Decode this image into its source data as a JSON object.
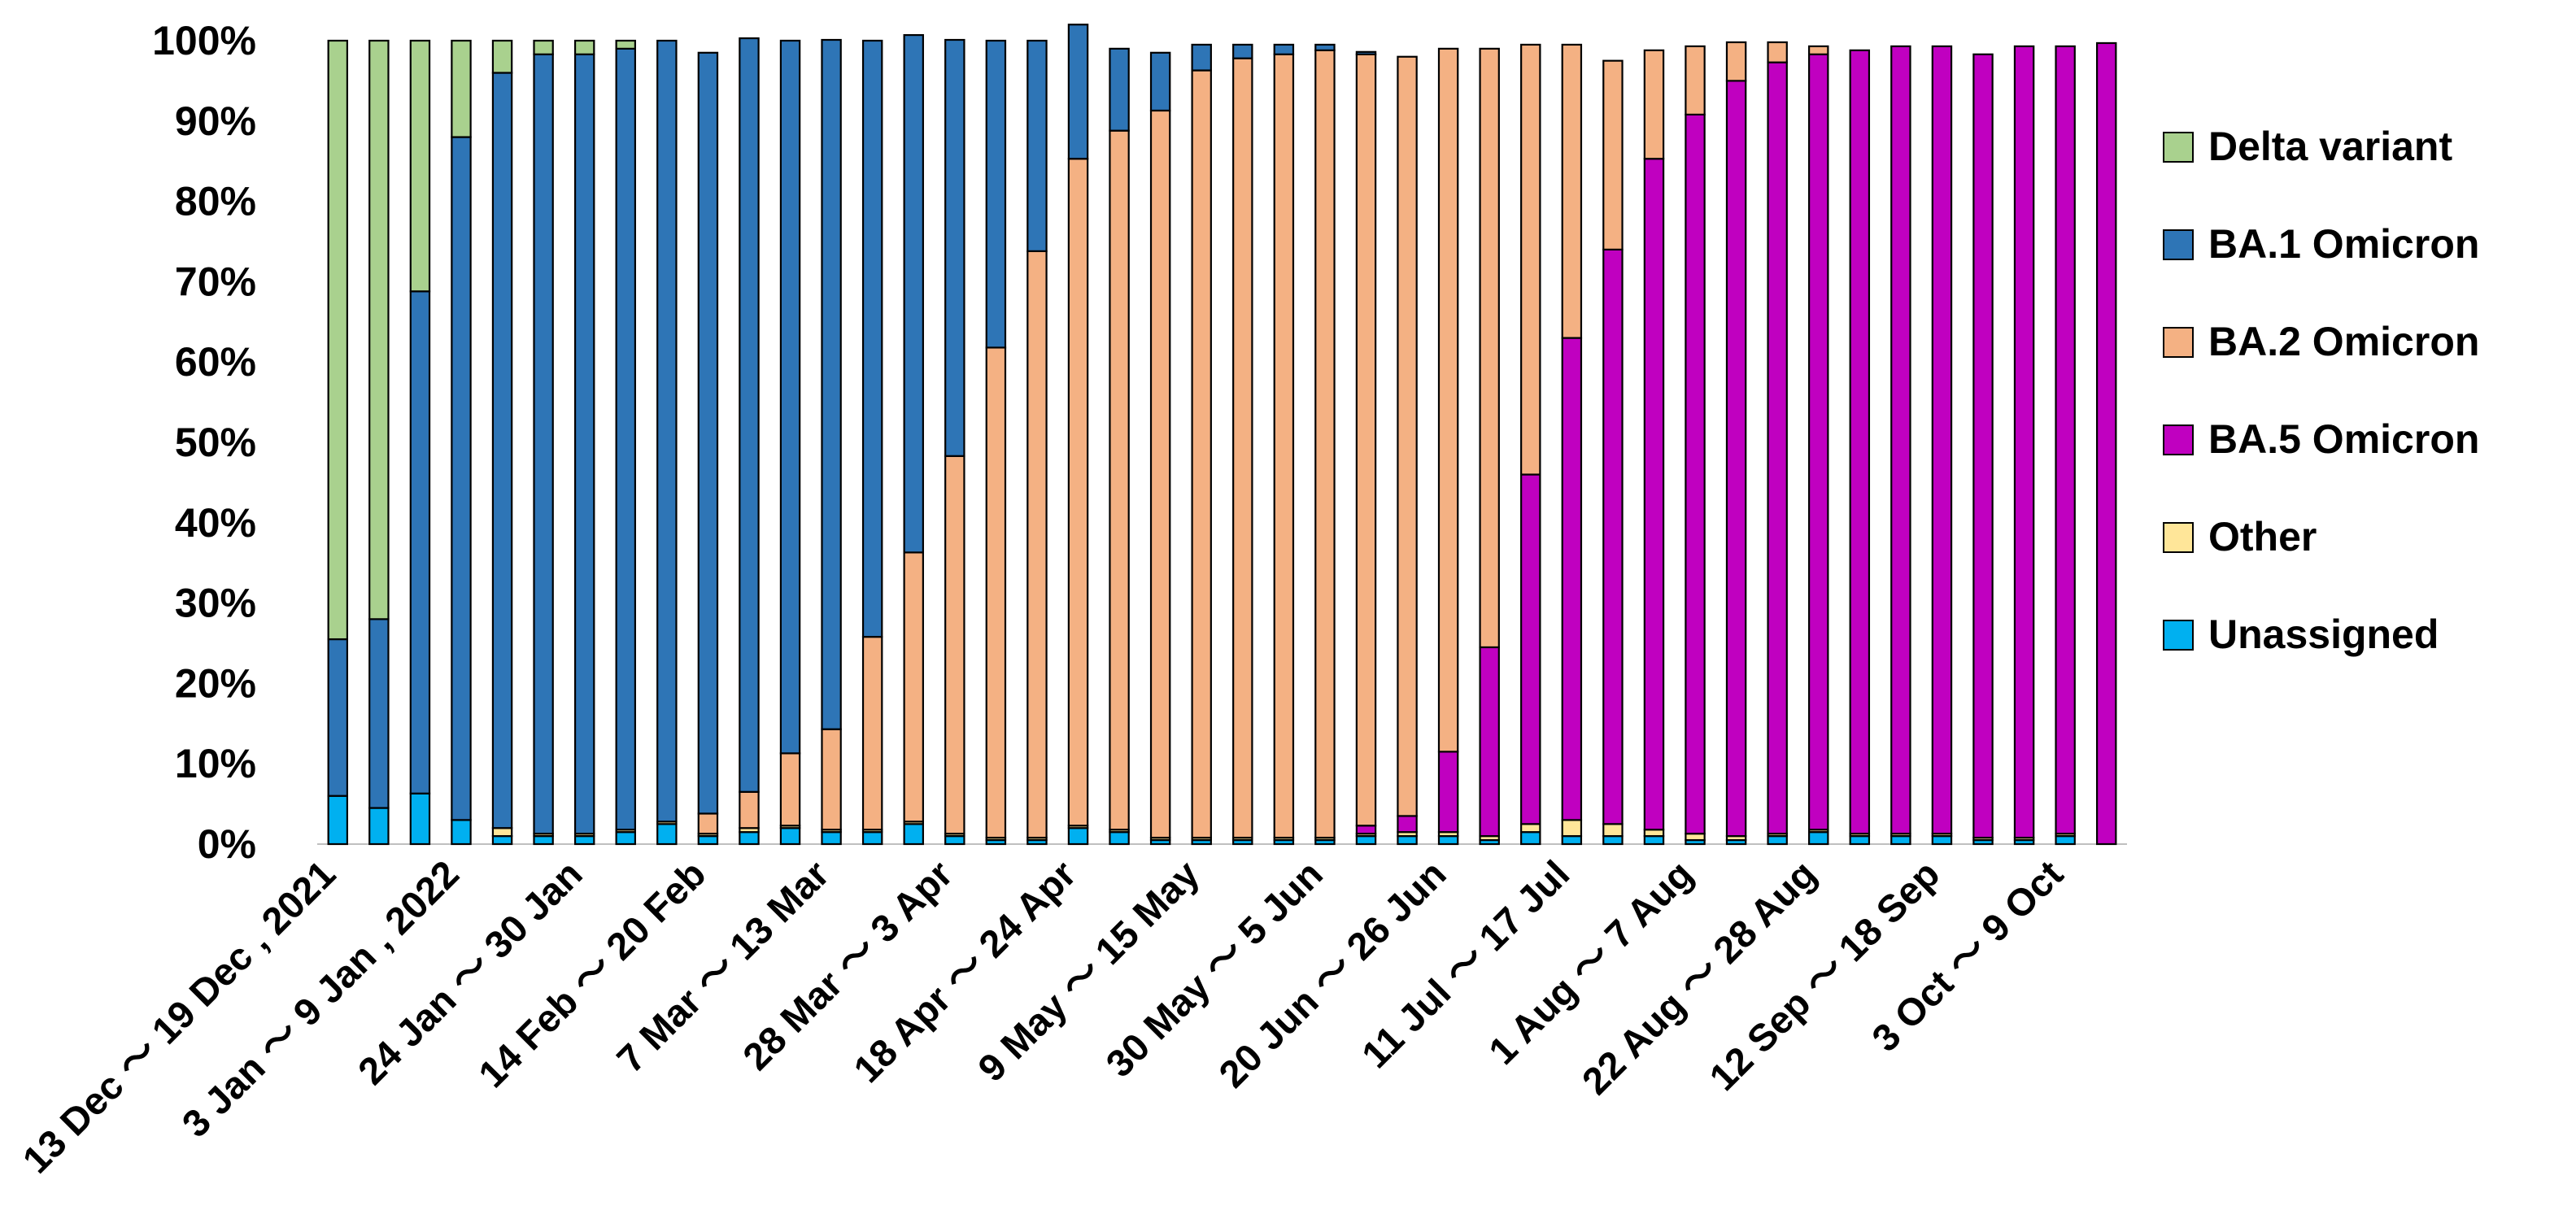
{
  "chart_data": {
    "type": "bar",
    "stacked": true,
    "percent": true,
    "title": "",
    "xlabel": "",
    "ylabel": "",
    "ylim": [
      0,
      100
    ],
    "yticks": [
      "0%",
      "10%",
      "20%",
      "30%",
      "40%",
      "50%",
      "60%",
      "70%",
      "80%",
      "90%",
      "100%"
    ],
    "x_tick_labels": [
      "13 Dec ～ 19 Dec , 2021",
      "3 Jan ～ 9 Jan , 2022",
      "24 Jan ～ 30 Jan",
      "14 Feb ～ 20 Feb",
      "7 Mar ～ 13 Mar",
      "28 Mar ～ 3 Apr",
      "18 Apr ～ 24 Apr",
      "9 May ～ 15 May",
      "30 May ～ 5 Jun",
      "20 Jun ～ 26 Jun",
      "11 Jul ～ 17 Jul",
      "1 Aug ～ 7 Aug",
      "22 Aug ～ 28 Aug",
      "12 Sep ～ 18 Sep",
      "3 Oct ～ 9 Oct"
    ],
    "legend_position": "right",
    "series": [
      {
        "name": "Unassigned",
        "color": "#00b0f0",
        "values": [
          6,
          4.5,
          6.3,
          3,
          1,
          1,
          1,
          1.5,
          2.5,
          1,
          1.5,
          2,
          1.5,
          1.5,
          2.5,
          1,
          0.5,
          0.5,
          2,
          1.5,
          0.5,
          0.5,
          0.5,
          0.5,
          0.5,
          1,
          1,
          1,
          0.5,
          1.5,
          1,
          1,
          1,
          0.5,
          0.5,
          1,
          1.5,
          1,
          1,
          1,
          0.5,
          0.5,
          1,
          0
        ]
      },
      {
        "name": "Other",
        "color": "#ffe699",
        "values": [
          0,
          0,
          0,
          0,
          1,
          0.3,
          0.3,
          0.3,
          0.3,
          0.3,
          0.5,
          0.3,
          0.3,
          0.3,
          0.3,
          0.3,
          0.3,
          0.3,
          0.3,
          0.3,
          0.3,
          0.3,
          0.3,
          0.3,
          0.3,
          0.3,
          0.5,
          0.5,
          0.5,
          1,
          2,
          1.5,
          0.8,
          0.8,
          0.5,
          0.3,
          0.3,
          0.3,
          0.3,
          0.3,
          0.3,
          0.3,
          0.3,
          0
        ]
      },
      {
        "name": "BA.5 Omicron",
        "color": "#c000c0",
        "values": [
          0,
          0,
          0,
          0,
          0,
          0,
          0,
          0,
          0,
          0,
          0,
          0,
          0,
          0,
          0,
          0,
          0,
          0,
          0,
          0,
          0,
          0,
          0,
          0,
          0,
          1,
          2,
          10,
          23.5,
          43.5,
          60,
          71.5,
          83.5,
          89.5,
          94,
          96,
          96.5,
          97.5,
          98,
          98,
          97.5,
          98.5,
          98,
          99.7
        ]
      },
      {
        "name": "BA.2 Omicron",
        "color": "#f4b183",
        "values": [
          0,
          0,
          0,
          0,
          0,
          0,
          0,
          0,
          0,
          2.5,
          4.5,
          9,
          12.5,
          24,
          33.5,
          47,
          61,
          73,
          83,
          87,
          90.5,
          95.5,
          97,
          97.5,
          98,
          96,
          94.5,
          87.5,
          74.5,
          53.5,
          36.5,
          23.5,
          13.5,
          8.5,
          4.8,
          2.5,
          1,
          0,
          0,
          0,
          0,
          0,
          0,
          0
        ]
      },
      {
        "name": "BA.1 Omicron",
        "color": "#2e75b6",
        "values": [
          19.5,
          23.5,
          62.5,
          85,
          94,
          97,
          97,
          97.2,
          97.2,
          94.7,
          93.8,
          88.7,
          85.8,
          74.2,
          64.4,
          51.8,
          38.2,
          26.2,
          16.7,
          10.2,
          7.2,
          3.2,
          1.7,
          1.2,
          0.7,
          0.3,
          0,
          0,
          0,
          0,
          0,
          0,
          0,
          0,
          0,
          0,
          0,
          0,
          0,
          0,
          0,
          0,
          0,
          0
        ]
      },
      {
        "name": "Delta variant",
        "color": "#a9d18e",
        "values": [
          74.5,
          72,
          31.2,
          12,
          4,
          1.7,
          1.7,
          1,
          0,
          0,
          0,
          0,
          0,
          0,
          0,
          0,
          0,
          0,
          0,
          0,
          0,
          0,
          0,
          0,
          0,
          0,
          0,
          0,
          0,
          0,
          0,
          0,
          0,
          0,
          0,
          0,
          0,
          0,
          0,
          0,
          0,
          0,
          0,
          0
        ]
      }
    ]
  },
  "legend": [
    "Delta variant",
    "BA.1 Omicron",
    "BA.2 Omicron",
    "BA.5 Omicron",
    "Other",
    "Unassigned"
  ]
}
